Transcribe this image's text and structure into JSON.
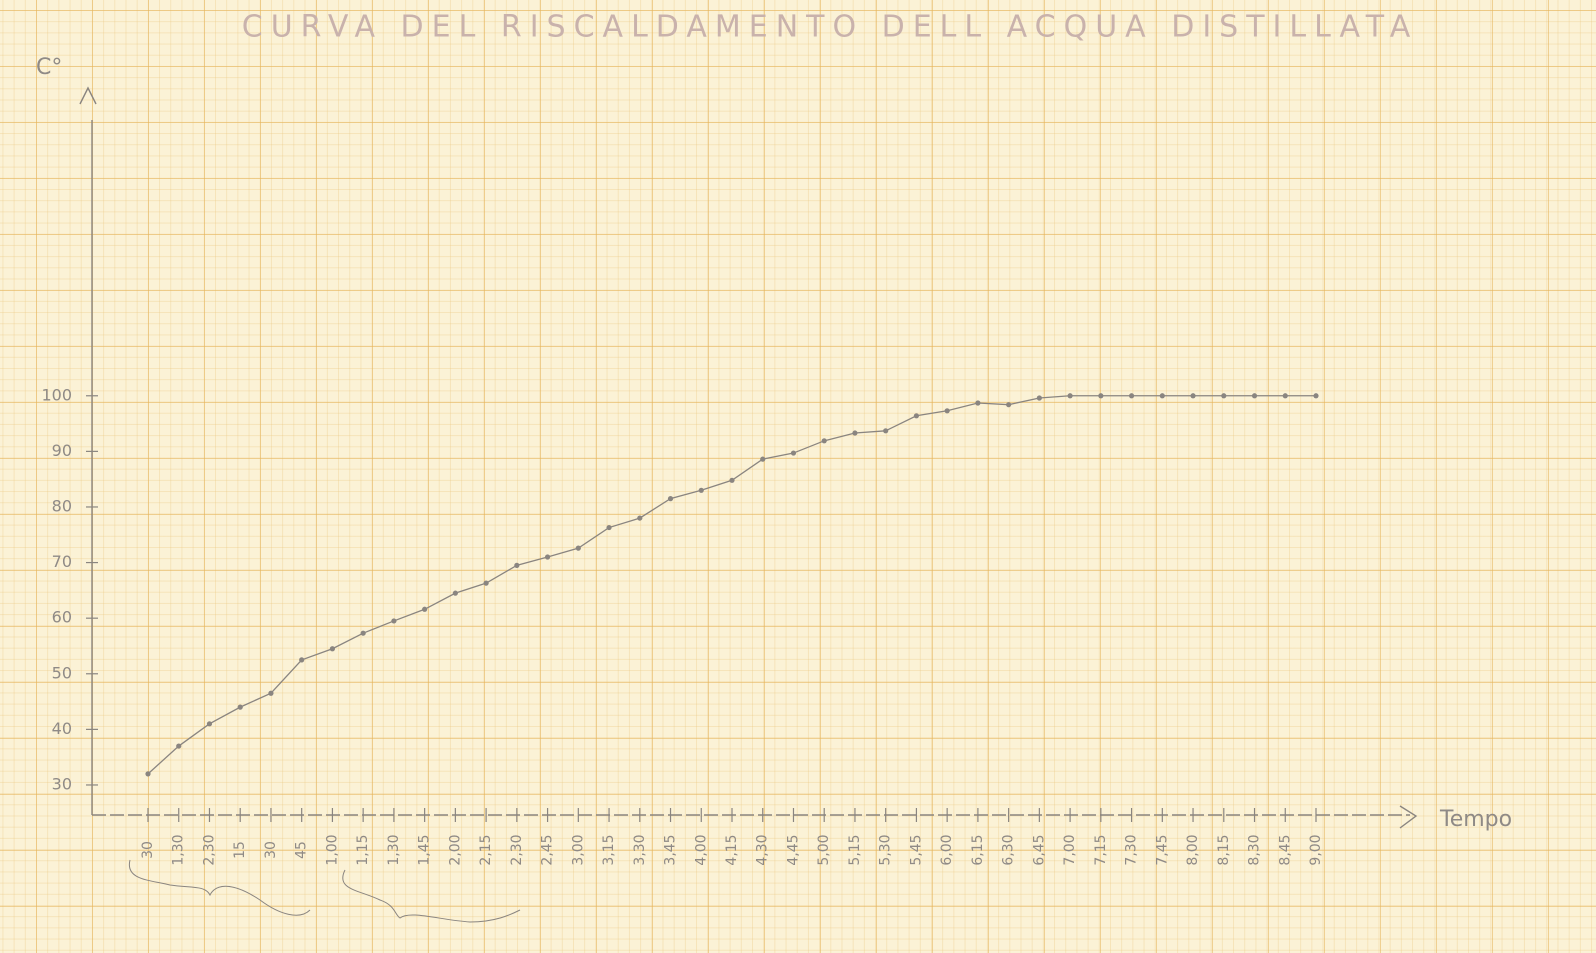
{
  "chart_data": {
    "type": "line",
    "title": "CURVA DEL RISCALDAMENTO DELL ACQUA DISTILLATA",
    "y_label": "C°",
    "x_label": "Tempo",
    "categories": [
      "30",
      "1,30",
      "2,30",
      "15",
      "30",
      "45",
      "1,00",
      "1,15",
      "1,30",
      "1,45",
      "2,00",
      "2,15",
      "2,30",
      "2,45",
      "3,00",
      "3,15",
      "3,30",
      "3,45",
      "4,00",
      "4,15",
      "4,30",
      "4,45",
      "5,00",
      "5,15",
      "5,30",
      "5,45",
      "6,00",
      "6,15",
      "6,30",
      "6,45",
      "7,00",
      "7,15",
      "7,30",
      "7,45",
      "8,00",
      "8,15",
      "8,30",
      "8,45",
      "9,00"
    ],
    "values": [
      32,
      37,
      41,
      44,
      46.5,
      52.5,
      54.5,
      57.3,
      59.5,
      61.6,
      64.5,
      66.3,
      69.5,
      71,
      72.6,
      76.3,
      78,
      81.5,
      83,
      84.8,
      88.6,
      89.7,
      91.9,
      93.3,
      93.7,
      96.4,
      97.3,
      98.7,
      98.4,
      99.6,
      100,
      100,
      100,
      100,
      100,
      100,
      100,
      100,
      100
    ],
    "color": "#8a8580",
    "ylim": [
      24.6,
      149.6
    ],
    "yticks": [
      30,
      40,
      50,
      60,
      70,
      80,
      90,
      100
    ]
  }
}
